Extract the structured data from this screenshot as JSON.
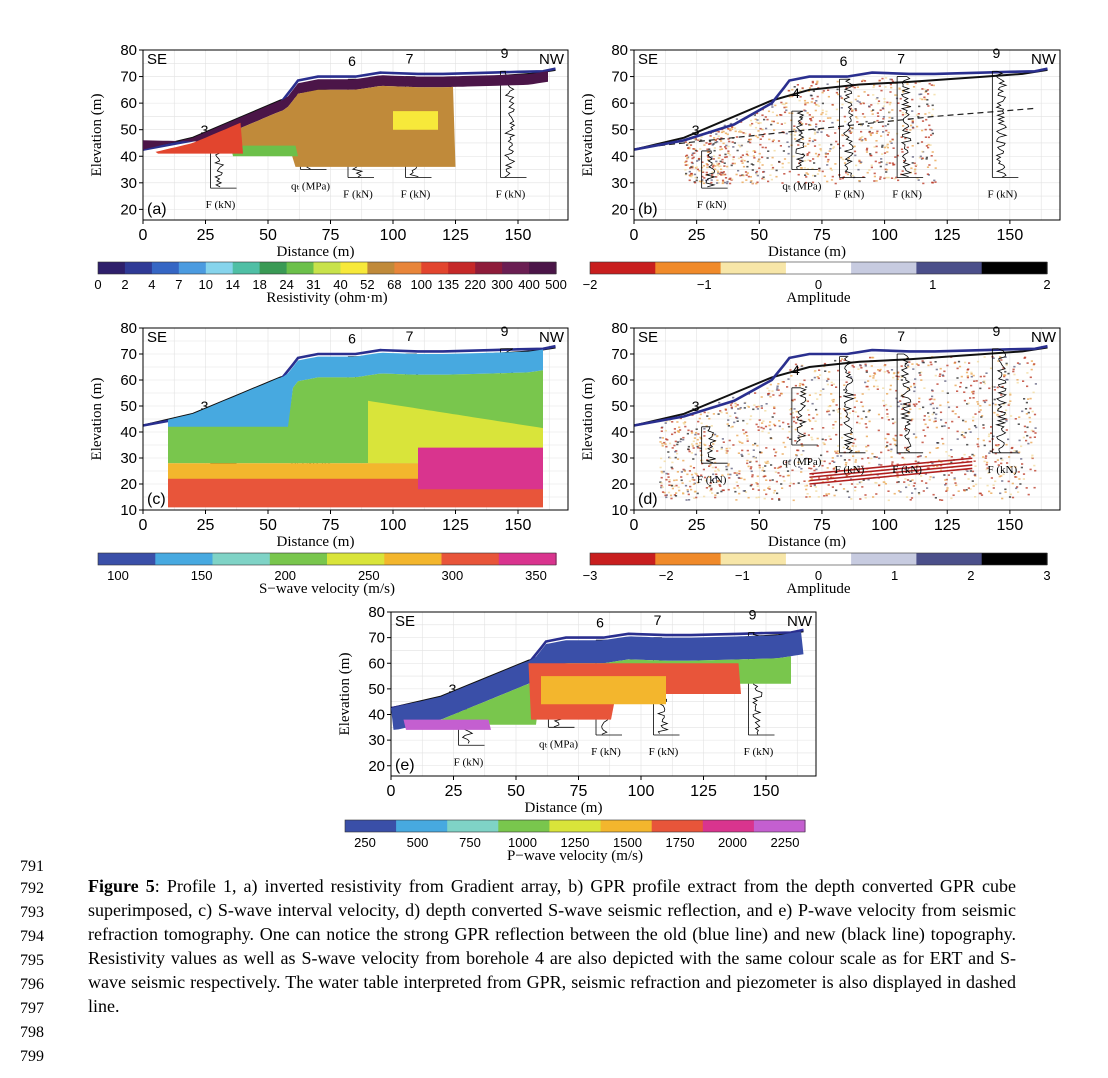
{
  "line_numbers": [
    "791",
    "792",
    "793",
    "794",
    "795",
    "796",
    "797",
    "798",
    "799"
  ],
  "caption": {
    "label": "Figure 5",
    "text": ": Profile 1, a) inverted resistivity from Gradient array, b) GPR profile extract from the depth converted GPR cube superimposed, c) S-wave interval velocity, d) depth converted S-wave seismic reflection, and e) P-wave velocity from seismic refraction tomography. One can notice the strong GPR reflection between the old (blue line) and new (black line) topography. Resistivity values as well as S-wave velocity from borehole 4 are also depicted with the same colour scale as for ERT and S-wave seismic respectively. The water table interpreted from GPR, seismic refraction and piezometer is also displayed in dashed line."
  },
  "panels": [
    {
      "id": "a",
      "tag": "(a)",
      "se": "SE",
      "nw": "NW",
      "ylabel": "Elevation (m)",
      "xlabel": "Distance (m)",
      "yticks": [
        "80",
        "70",
        "60",
        "50",
        "40",
        "30",
        "20"
      ],
      "xticks": [
        "0",
        "25",
        "50",
        "75",
        "100",
        "125",
        "150"
      ],
      "boreholes": [
        "3",
        "4",
        "6",
        "7",
        "9"
      ],
      "unitF": "F (kN)",
      "unitQ": "qₜ (MPa)"
    },
    {
      "id": "b",
      "tag": "(b)",
      "se": "SE",
      "nw": "NW",
      "ylabel": "Elevation (m)",
      "xlabel": "Distance (m)",
      "yticks": [
        "80",
        "70",
        "60",
        "50",
        "40",
        "30",
        "20"
      ],
      "xticks": [
        "0",
        "25",
        "50",
        "75",
        "100",
        "125",
        "150"
      ],
      "boreholes": [
        "3",
        "4",
        "6",
        "7",
        "9"
      ],
      "unitF": "F (kN)",
      "unitQ": "qₜ (MPa)"
    },
    {
      "id": "c",
      "tag": "(c)",
      "se": "SE",
      "nw": "NW",
      "ylabel": "Elevation (m)",
      "xlabel": "Distance (m)",
      "yticks": [
        "80",
        "70",
        "60",
        "50",
        "40",
        "30",
        "20",
        "10"
      ],
      "xticks": [
        "0",
        "25",
        "50",
        "75",
        "100",
        "125",
        "150"
      ],
      "boreholes": [
        "3",
        "4",
        "6",
        "7",
        "9"
      ],
      "unitF": "F (kN)",
      "unitQ": "qₜ (MPa)"
    },
    {
      "id": "d",
      "tag": "(d)",
      "se": "SE",
      "nw": "NW",
      "ylabel": "Elevation (m)",
      "xlabel": "Distance (m)",
      "yticks": [
        "80",
        "70",
        "60",
        "50",
        "40",
        "30",
        "20",
        "10"
      ],
      "xticks": [
        "0",
        "25",
        "50",
        "75",
        "100",
        "125",
        "150"
      ],
      "boreholes": [
        "3",
        "4",
        "6",
        "7",
        "9"
      ],
      "unitF": "F (kN)",
      "unitQ": "qₜ (MPa)"
    },
    {
      "id": "e",
      "tag": "(e)",
      "se": "SE",
      "nw": "NW",
      "ylabel": "Elevation (m)",
      "xlabel": "Distance (m)",
      "yticks": [
        "80",
        "70",
        "60",
        "50",
        "40",
        "30",
        "20"
      ],
      "xticks": [
        "0",
        "25",
        "50",
        "75",
        "100",
        "125",
        "150"
      ],
      "boreholes": [
        "3",
        "4",
        "6",
        "7",
        "9"
      ],
      "unitF": "F (kN)",
      "unitQ": "qₜ (MPa)"
    }
  ],
  "colorbars": [
    {
      "id": "res",
      "title": "Resistivity (ohm·m)",
      "ticks": [
        "0",
        "2",
        "4",
        "7",
        "10",
        "14",
        "18",
        "24",
        "31",
        "40",
        "52",
        "68",
        "100",
        "135",
        "220",
        "300",
        "400",
        "500"
      ],
      "colors": [
        "#2e1f6b",
        "#2f3a96",
        "#3566c4",
        "#4b9be0",
        "#86d4ec",
        "#4fbfa5",
        "#3a9a55",
        "#6cc04a",
        "#c8e24a",
        "#f7e93a",
        "#c08a3a",
        "#e8853a",
        "#e2452e",
        "#c52828",
        "#8e1c3a",
        "#6a1e52",
        "#4b1548"
      ]
    },
    {
      "id": "amp1",
      "title": "Amplitude",
      "ticks": [
        "−2",
        "−1",
        "0",
        "1",
        "2"
      ],
      "colors": [
        "#c81e1e",
        "#f08a2a",
        "#f7e6a8",
        "#ffffff",
        "#c7cbe0",
        "#4b4f8a",
        "#000000"
      ]
    },
    {
      "id": "vs",
      "title": "S−wave velocity (m/s)",
      "ticks": [
        "100",
        "150",
        "200",
        "250",
        "300",
        "350"
      ],
      "colors": [
        "#3a4fa8",
        "#47a9e0",
        "#7fd3c6",
        "#79c64d",
        "#d9e43a",
        "#f3b62d",
        "#e8553a",
        "#d9348e"
      ]
    },
    {
      "id": "amp2",
      "title": "Amplitude",
      "ticks": [
        "−3",
        "−2",
        "−1",
        "0",
        "1",
        "2",
        "3"
      ],
      "colors": [
        "#c81e1e",
        "#f08a2a",
        "#f7e6a8",
        "#ffffff",
        "#c7cbe0",
        "#4b4f8a",
        "#000000"
      ]
    },
    {
      "id": "vp",
      "title": "P−wave velocity (m/s)",
      "ticks": [
        "250",
        "500",
        "750",
        "1000",
        "1250",
        "1500",
        "1750",
        "2000",
        "2250"
      ],
      "colors": [
        "#3a4fa8",
        "#47a9e0",
        "#7fd3c6",
        "#79c64d",
        "#d9e43a",
        "#f3b62d",
        "#e8553a",
        "#d9348e",
        "#c45fd0"
      ]
    }
  ]
}
